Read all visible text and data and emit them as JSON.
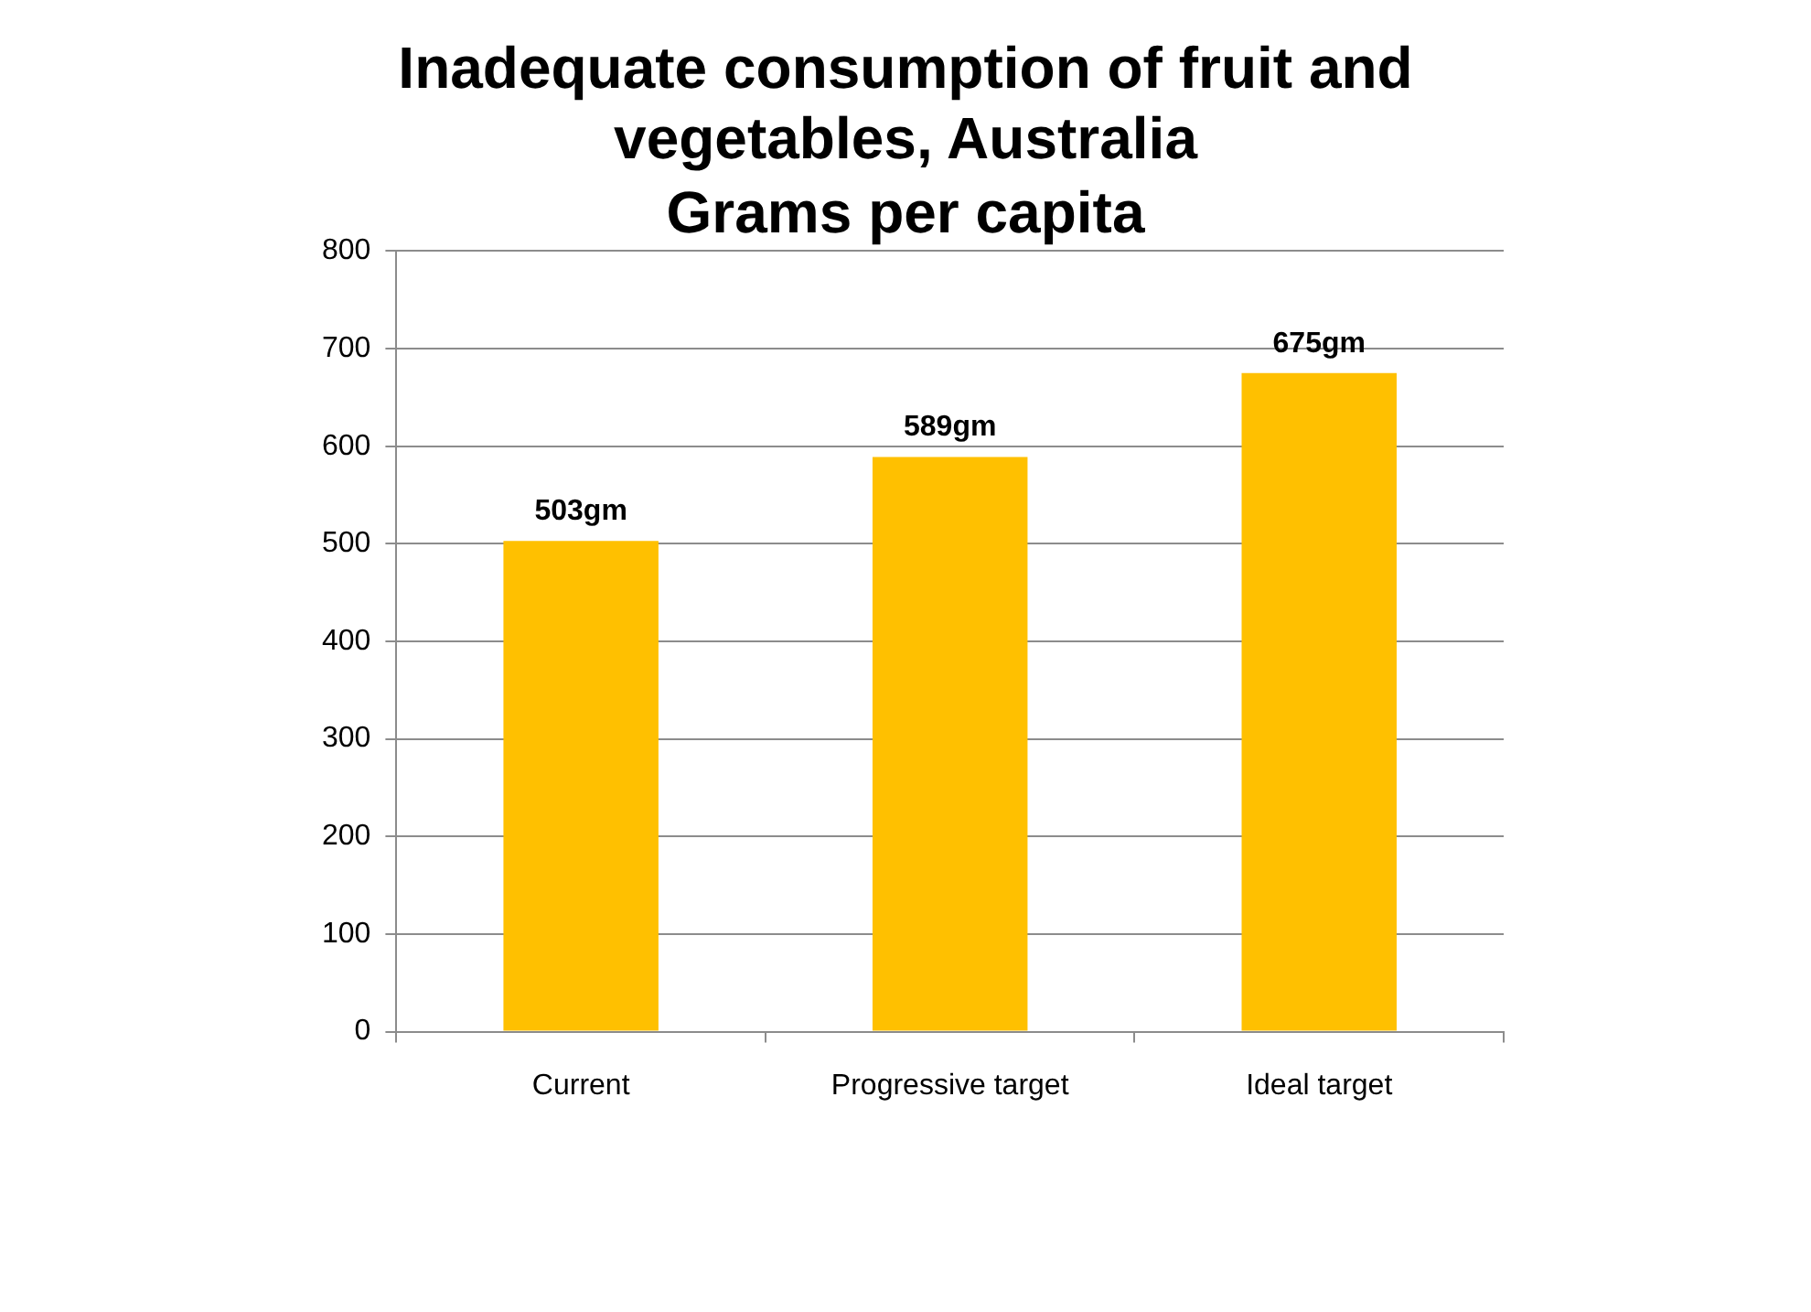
{
  "chart_data": {
    "type": "bar",
    "title": "Inadequate consumption of fruit and vegetables, Australia",
    "subtitle": "Grams per capita",
    "categories": [
      "Current",
      "Progressive target",
      "Ideal target"
    ],
    "values": [
      503,
      589,
      675
    ],
    "value_labels": [
      "503gm",
      "589gm",
      "675gm"
    ],
    "color": "#ffc000",
    "ylim": [
      0,
      800
    ],
    "yticks": [
      0,
      100,
      200,
      300,
      400,
      500,
      600,
      700,
      800
    ],
    "grid": "y",
    "legend": false
  }
}
